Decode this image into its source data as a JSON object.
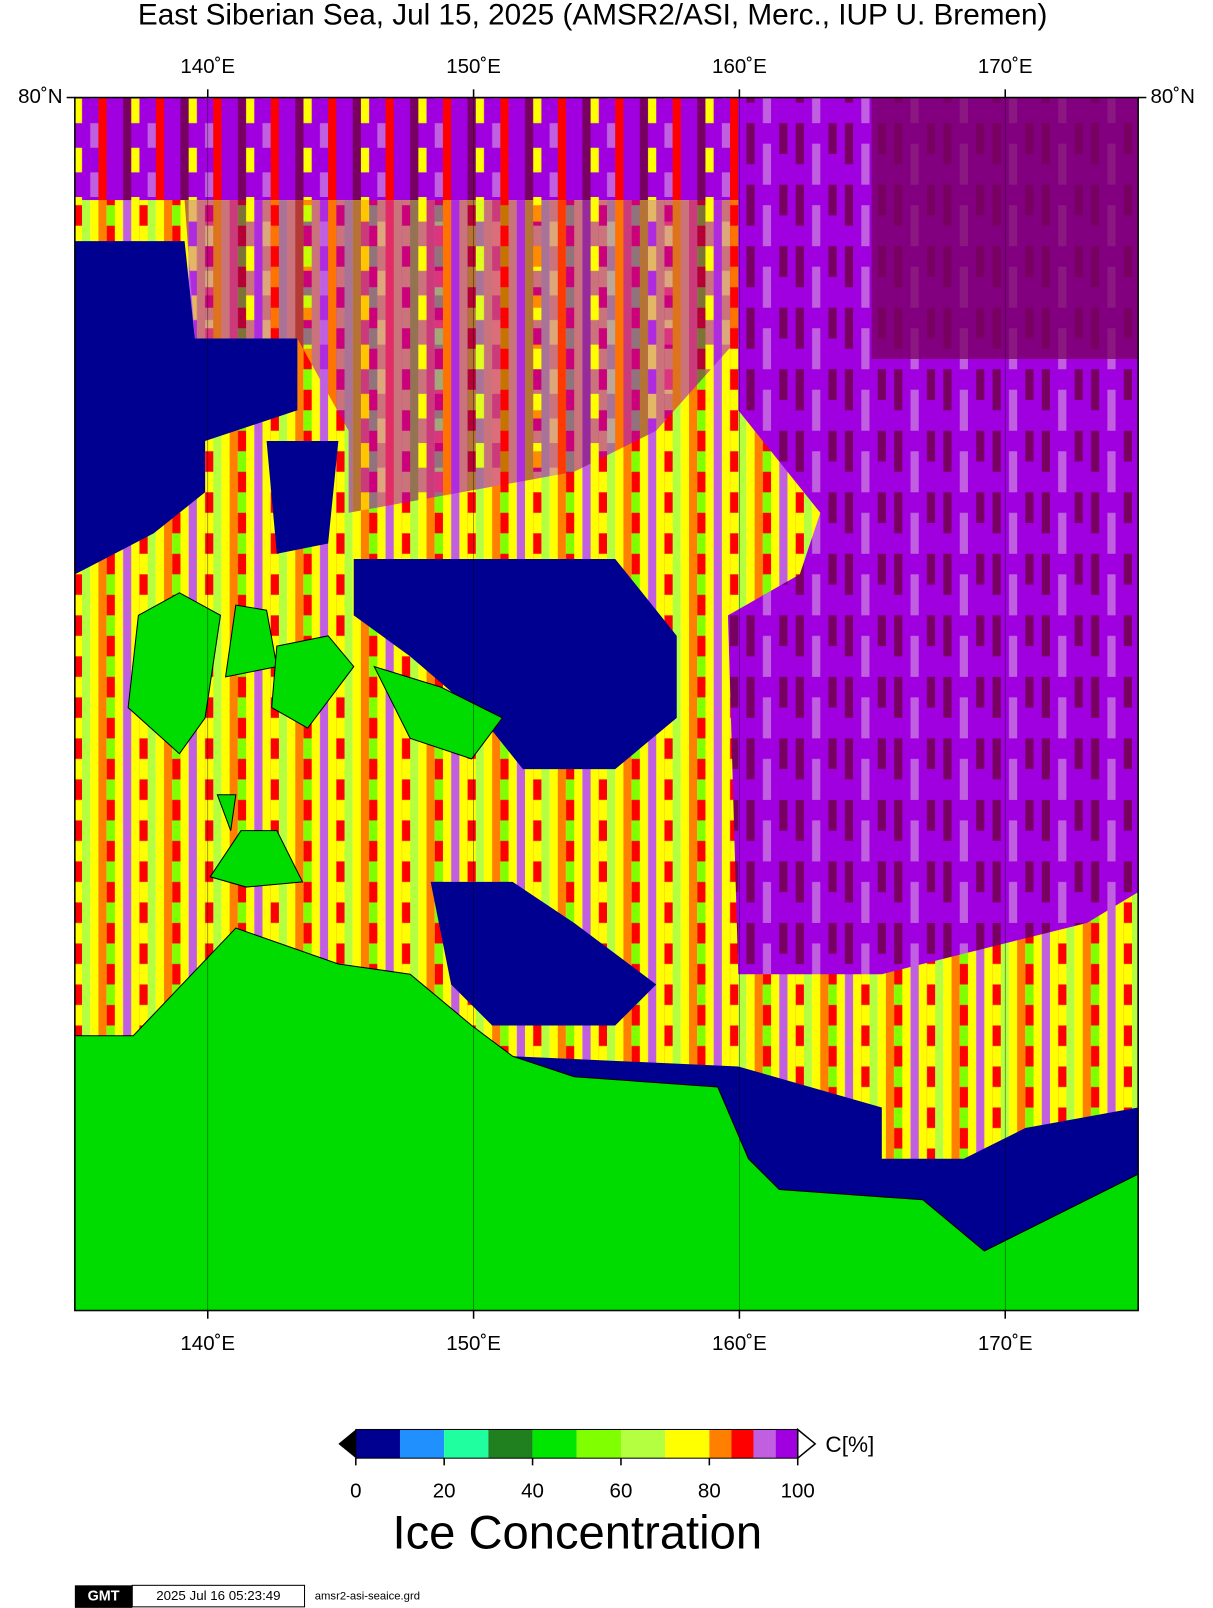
{
  "map": {
    "title": "East Siberian Sea, Jul 15, 2025 (AMSR2/ASI, Merc., IUP U. Bremen)",
    "xlim": [
      135,
      175
    ],
    "xticks": [
      {
        "value": 140,
        "label": "140˚E"
      },
      {
        "value": 150,
        "label": "150˚E"
      },
      {
        "value": 160,
        "label": "160˚E"
      },
      {
        "value": 170,
        "label": "170˚E"
      }
    ],
    "ytick_top": {
      "value": 80,
      "label": "80˚N"
    }
  },
  "colorbar": {
    "label": "Ice Concentration",
    "unit": "C[%]",
    "lim": [
      0,
      100
    ],
    "ticks": [
      0,
      20,
      40,
      60,
      80,
      100
    ],
    "bins": [
      0,
      10,
      20,
      30,
      40,
      50,
      60,
      70,
      80,
      85,
      90,
      95,
      100
    ],
    "colors": [
      "#000090",
      "#2090ff",
      "#20ffa0",
      "#208020",
      "#00e600",
      "#80ff00",
      "#b4ff40",
      "#ffff00",
      "#ff8000",
      "#ff0000",
      "#c060e0",
      "#a000e0"
    ]
  },
  "footer": {
    "logo": "GMT",
    "timestamp": "2025 Jul 16 05:23:49",
    "file": "amsr2-asi-seaice.grd"
  }
}
